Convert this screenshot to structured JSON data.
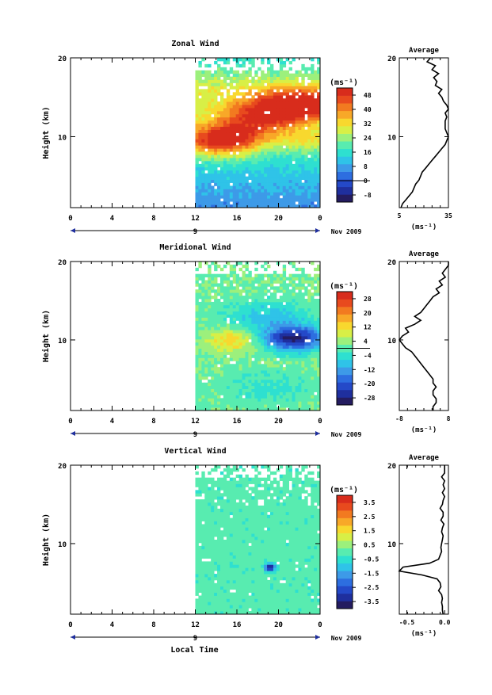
{
  "figure": {
    "colors": {
      "scale": [
        "#241c60",
        "#1f2f9e",
        "#2449c8",
        "#2d6ee0",
        "#3d9ae8",
        "#2fc3e8",
        "#2ee0d0",
        "#58ecb0",
        "#9cf07c",
        "#d8ef46",
        "#f8d82e",
        "#f8a828",
        "#f27a20",
        "#e84a1e",
        "#d82c1c"
      ],
      "contour": "#000000",
      "missing": "#ffffff"
    },
    "x_label": "Local Time",
    "date_label": "Nov 2009",
    "day_label": "9"
  },
  "chart_data": [
    {
      "type": "heatmap",
      "title": "Zonal Wind",
      "ylabel": "Height (km)",
      "xlabel": "Local Time",
      "xticks": [
        "0",
        "4",
        "8",
        "12",
        "16",
        "20",
        "0"
      ],
      "yticks": [
        "10",
        "20"
      ],
      "xlim": [
        0,
        24
      ],
      "ylim": [
        1,
        20
      ],
      "data_start_hour": 12,
      "unit_label": "(ms⁻¹)",
      "colorbar": {
        "ticks": [
          "48",
          "40",
          "32",
          "24",
          "16",
          "8",
          "0",
          "-8"
        ],
        "range": [
          -12,
          52
        ],
        "zero_line": 0
      },
      "cells_description": "Jet maxima ~48 ms-1 near 14 km (hours 18-24) and ~40 ms-1 near 9 km (hours 12-18); weak winds below 5 km.",
      "profile": {
        "title": "Average",
        "xlabel": "(ms⁻¹)",
        "xticks": [
          "5",
          "35"
        ],
        "yticks": [
          "10",
          "20"
        ],
        "xlim": [
          5,
          35
        ],
        "height_km": [
          1,
          1.5,
          2,
          2.5,
          3,
          3.5,
          4,
          4.5,
          5,
          5.5,
          6,
          6.5,
          7,
          7.5,
          8,
          8.5,
          9,
          9.5,
          10,
          10.5,
          11,
          11.5,
          12,
          12.5,
          13,
          13.5,
          14,
          14.5,
          15,
          15.5,
          16,
          16.5,
          17,
          17.5,
          18,
          18.5,
          19,
          19.5,
          20
        ],
        "values": [
          6,
          7,
          9,
          11,
          13,
          14,
          15,
          17,
          18,
          19,
          21,
          23,
          25,
          27,
          29,
          31,
          33,
          34,
          35,
          34,
          33,
          33,
          33,
          34,
          33,
          35,
          34,
          32,
          31,
          29,
          31,
          27,
          28,
          26,
          29,
          25,
          27,
          22,
          24
        ]
      }
    },
    {
      "type": "heatmap",
      "title": "Meridional Wind",
      "ylabel": "Height (km)",
      "xlabel": "Local Time",
      "xticks": [
        "0",
        "4",
        "8",
        "12",
        "16",
        "20",
        "0"
      ],
      "yticks": [
        "10",
        "20"
      ],
      "xlim": [
        0,
        24
      ],
      "ylim": [
        1,
        20
      ],
      "data_start_hour": 12,
      "unit_label": "(ms⁻¹)",
      "colorbar": {
        "ticks": [
          "28",
          "20",
          "12",
          "4",
          "-4",
          "-12",
          "-20",
          "-28"
        ],
        "range": [
          -32,
          32
        ],
        "zero_line": 0
      },
      "cells_description": "Strong northerly (~-28 ms-1) near 10 km around hours 20-24; positive ~12 ms-1 near 10 km at hour 16; near zero elsewhere.",
      "profile": {
        "title": "Average",
        "xlabel": "(ms⁻¹)",
        "xticks": [
          "-8",
          "8"
        ],
        "yticks": [
          "10",
          "20"
        ],
        "xlim": [
          -8,
          8
        ],
        "height_km": [
          1,
          1.5,
          2,
          2.5,
          3,
          3.5,
          4,
          4.5,
          5,
          5.5,
          6,
          6.5,
          7,
          7.5,
          8,
          8.5,
          9,
          9.5,
          10,
          10.5,
          11,
          11.5,
          12,
          12.5,
          13,
          13.5,
          14,
          14.5,
          15,
          15.5,
          16,
          16.5,
          17,
          17.5,
          18,
          18.5,
          19,
          19.5,
          20
        ],
        "values": [
          3,
          3,
          4,
          4,
          3,
          3,
          4,
          3,
          3,
          2,
          1,
          0,
          -1,
          -2,
          -3,
          -4,
          -6,
          -7,
          -8,
          -7,
          -5,
          -6,
          -3,
          -1,
          -3,
          -1,
          0,
          1,
          2,
          3,
          5,
          4,
          6,
          5,
          7,
          6,
          7,
          8,
          8
        ]
      }
    },
    {
      "type": "heatmap",
      "title": "Vertical Wind",
      "ylabel": "Height (km)",
      "xlabel": "Local Time",
      "xticks": [
        "0",
        "4",
        "8",
        "12",
        "16",
        "20",
        "0"
      ],
      "yticks": [
        "10",
        "20"
      ],
      "xlim": [
        0,
        24
      ],
      "ylim": [
        1,
        20
      ],
      "data_start_hour": 12,
      "unit_label": "(ms⁻¹)",
      "colorbar": {
        "ticks": [
          "3.5",
          "2.5",
          "1.5",
          "0.5",
          "-0.5",
          "-1.5",
          "-2.5",
          "-3.5"
        ],
        "range": [
          -4,
          4
        ]
      },
      "cells_description": "Mostly -0.5 to 0.5 ms-1; a small downdraft patch (~-3.5 ms-1) near 7 km at hour 19.",
      "profile": {
        "title": "Average",
        "xlabel": "(ms⁻¹)",
        "xticks": [
          "-0.5",
          "0.0"
        ],
        "yticks": [
          "10",
          "20"
        ],
        "xlim": [
          -0.6,
          0.05
        ],
        "height_km": [
          1,
          1.5,
          2,
          2.5,
          3,
          3.5,
          4,
          4.5,
          5,
          5.5,
          6,
          6.5,
          7,
          7.5,
          8,
          8.5,
          9,
          9.5,
          10,
          10.5,
          11,
          11.5,
          12,
          12.5,
          13,
          13.5,
          14,
          14.5,
          15,
          15.5,
          16,
          16.5,
          17,
          17.5,
          18,
          18.5,
          19,
          19.5,
          20
        ],
        "values": [
          -0.02,
          -0.03,
          -0.03,
          -0.04,
          -0.03,
          -0.04,
          -0.08,
          -0.05,
          -0.06,
          -0.1,
          -0.3,
          -0.6,
          -0.55,
          -0.2,
          -0.08,
          -0.06,
          -0.04,
          -0.05,
          -0.04,
          -0.03,
          -0.02,
          -0.04,
          -0.03,
          -0.01,
          -0.05,
          -0.02,
          -0.02,
          -0.06,
          -0.03,
          -0.02,
          0.0,
          -0.03,
          0.0,
          -0.02,
          0.0,
          -0.04,
          0.0,
          0.0,
          0.0
        ]
      }
    }
  ]
}
